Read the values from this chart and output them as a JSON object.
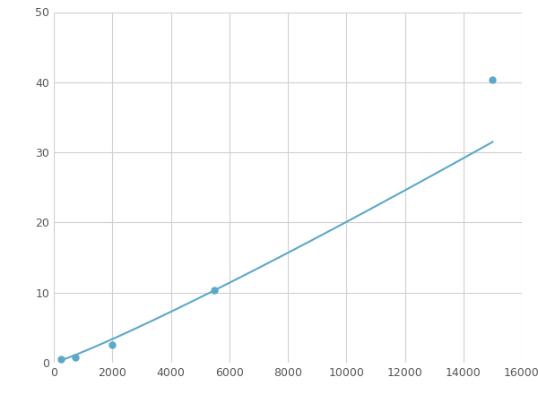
{
  "x_points": [
    250,
    750,
    2000,
    5500,
    15000
  ],
  "y_points": [
    0.5,
    0.8,
    2.5,
    10.3,
    40.3
  ],
  "line_color": "#5ba8c9",
  "marker_color": "#5ba8c9",
  "marker_size": 5,
  "line_width": 1.5,
  "xlim": [
    0,
    16000
  ],
  "ylim": [
    0,
    50
  ],
  "xticks": [
    0,
    2000,
    4000,
    6000,
    8000,
    10000,
    12000,
    14000,
    16000
  ],
  "yticks": [
    0,
    10,
    20,
    30,
    40,
    50
  ],
  "grid_color": "#d0d0d0",
  "background_color": "#ffffff"
}
